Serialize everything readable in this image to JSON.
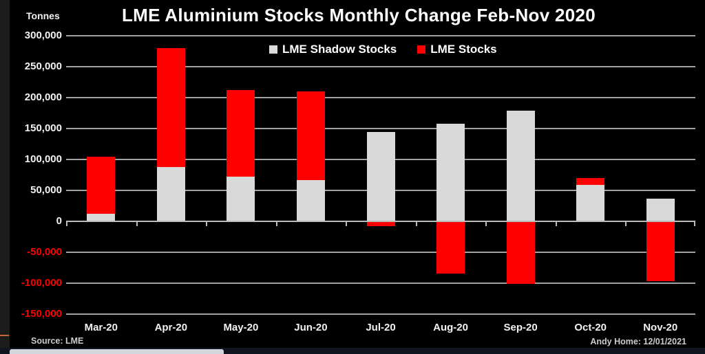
{
  "chart": {
    "title": "LME Aluminium Stocks Monthly Change Feb-Nov 2020",
    "y_axis_label": "Tonnes",
    "source": "Source: LME",
    "credit": "Andy Home: 12/01/2021",
    "legend": [
      {
        "label": "LME Shadow Stocks",
        "color": "#d9d9d9"
      },
      {
        "label": "LME Stocks",
        "color": "#ff0000"
      }
    ]
  },
  "chart_data": {
    "type": "bar",
    "stacked": true,
    "title": "LME Aluminium Stocks Monthly Change Feb-Nov 2020",
    "xlabel": "",
    "ylabel": "Tonnes",
    "categories": [
      "Mar-20",
      "Apr-20",
      "May-20",
      "Jun-20",
      "Jul-20",
      "Aug-20",
      "Sep-20",
      "Oct-20",
      "Nov-20"
    ],
    "series": [
      {
        "name": "LME Shadow Stocks",
        "color": "#d9d9d9",
        "values": [
          12000,
          88000,
          72000,
          67000,
          145000,
          158000,
          179000,
          59000,
          37000
        ]
      },
      {
        "name": "LME Stocks",
        "color": "#ff0000",
        "values": [
          93000,
          192000,
          140000,
          143000,
          -7000,
          -83000,
          -100000,
          11000,
          -95000
        ]
      }
    ],
    "ylim": [
      -150000,
      300000
    ],
    "ytick_step": 50000,
    "grid": true,
    "legend_position": "top-center",
    "background": "#000000",
    "positive_tick_color": "#f2f2f2",
    "negative_tick_color": "#ff0000"
  }
}
